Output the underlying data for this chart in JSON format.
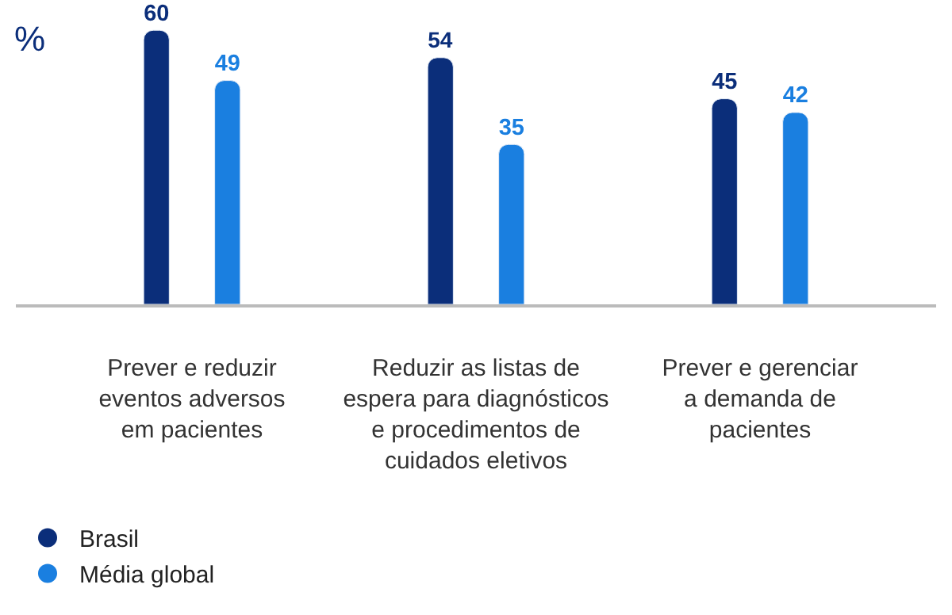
{
  "chart_data": {
    "type": "bar",
    "ylabel": "%",
    "categories": [
      "Prever e reduzir\neventos adversos\nem pacientes",
      "Reduzir as listas de\nespera para diagnósticos\ne procedimentos de\ncuidados eletivos",
      "Prever e gerenciar\na demanda de\npacientes"
    ],
    "series": [
      {
        "name": "Brasil",
        "color": "#0b2e7a",
        "values": [
          60,
          54,
          45
        ]
      },
      {
        "name": "Média global",
        "color": "#1a7fe0",
        "values": [
          49,
          35,
          42
        ]
      }
    ],
    "data_labels": true,
    "legend": "bottom left",
    "tick_labels": "x"
  }
}
